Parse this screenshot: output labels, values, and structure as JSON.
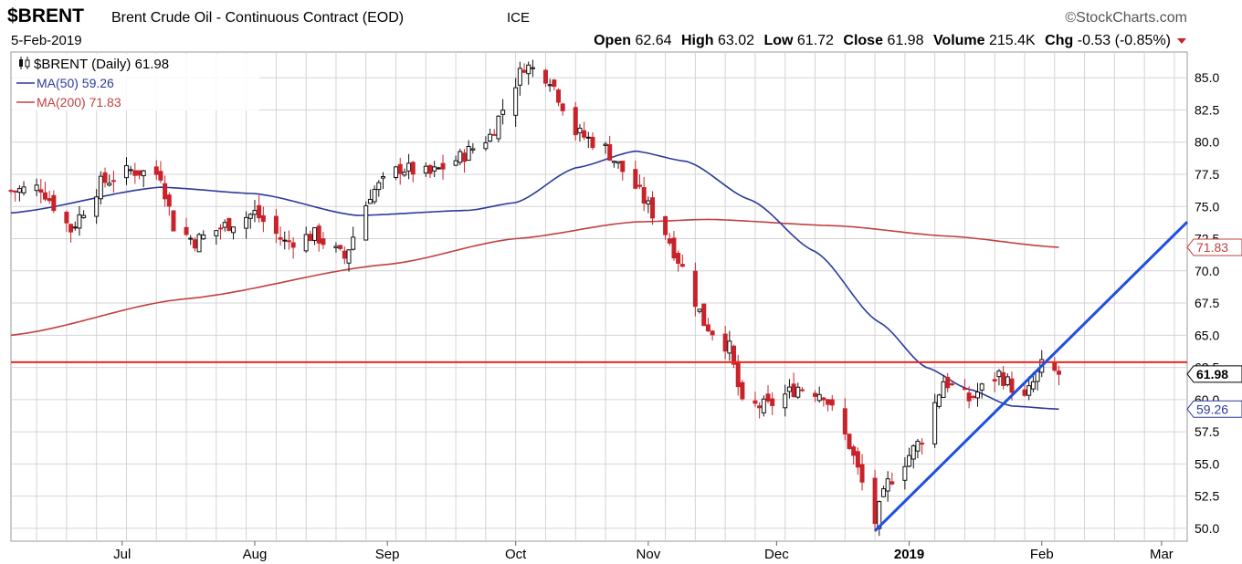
{
  "header": {
    "symbol": "$BRENT",
    "name": "Brent Crude Oil - Continuous Contract (EOD)",
    "exchange": "ICE",
    "watermark": "©StockCharts.com",
    "date": "5-Feb-2019",
    "quote": {
      "open_label": "Open",
      "open": "62.64",
      "high_label": "High",
      "high": "63.02",
      "low_label": "Low",
      "low": "61.72",
      "close_label": "Close",
      "close": "61.98",
      "volume_label": "Volume",
      "volume": "215.4K",
      "chg_label": "Chg",
      "chg": "-0.53 (-0.85%)"
    }
  },
  "legend": {
    "price": "$BRENT (Daily) 61.98",
    "ma50": "MA(50) 59.26",
    "ma200": "MA(200) 71.83"
  },
  "colors": {
    "up": "#111111",
    "down": "#c8232a",
    "ma50": "#2b3a9a",
    "ma200": "#c24040",
    "hline": "#e8281e",
    "trend": "#1f4fe0",
    "grid": "#d4d4d4"
  },
  "chart_data": {
    "type": "candlestick",
    "y_axis": {
      "min": 49,
      "max": 87,
      "ticks": [
        "85.0",
        "82.5",
        "80.0",
        "77.5",
        "75.0",
        "72.5",
        "70.0",
        "67.5",
        "65.0",
        "62.5",
        "60.0",
        "57.5",
        "55.0",
        "52.5",
        "50.0"
      ],
      "side": "right"
    },
    "x_axis": {
      "ticks": [
        {
          "label": "Jul",
          "date": "2018-07-01"
        },
        {
          "label": "Aug",
          "date": "2018-08-01"
        },
        {
          "label": "Sep",
          "date": "2018-09-01"
        },
        {
          "label": "Oct",
          "date": "2018-10-01"
        },
        {
          "label": "Nov",
          "date": "2018-11-01"
        },
        {
          "label": "Dec",
          "date": "2018-12-01"
        },
        {
          "label": "2019",
          "date": "2019-01-01"
        },
        {
          "label": "Feb",
          "date": "2019-02-01"
        },
        {
          "label": "Mar",
          "date": "2019-03-01"
        }
      ],
      "range": [
        "2018-06-05",
        "2019-03-07"
      ]
    },
    "grid": true,
    "price_anchors": [
      [
        "2018-06-05",
        76.2
      ],
      [
        "2018-06-12",
        76.5
      ],
      [
        "2018-06-19",
        73.2
      ],
      [
        "2018-06-26",
        76.8
      ],
      [
        "2018-07-03",
        77.8
      ],
      [
        "2018-07-10",
        77.5
      ],
      [
        "2018-07-13",
        73.5
      ],
      [
        "2018-07-18",
        72.3
      ],
      [
        "2018-07-25",
        73.5
      ],
      [
        "2018-08-01",
        74.5
      ],
      [
        "2018-08-08",
        72.2
      ],
      [
        "2018-08-15",
        72.8
      ],
      [
        "2018-08-22",
        71.0
      ],
      [
        "2018-08-28",
        76.0
      ],
      [
        "2018-09-04",
        78.0
      ],
      [
        "2018-09-11",
        77.5
      ],
      [
        "2018-09-18",
        78.8
      ],
      [
        "2018-09-25",
        80.5
      ],
      [
        "2018-10-03",
        86.0
      ],
      [
        "2018-10-09",
        85.0
      ],
      [
        "2018-10-15",
        80.8
      ],
      [
        "2018-10-22",
        79.5
      ],
      [
        "2018-10-29",
        76.5
      ],
      [
        "2018-11-05",
        73.0
      ],
      [
        "2018-11-09",
        70.2
      ],
      [
        "2018-11-14",
        66.0
      ],
      [
        "2018-11-20",
        64.0
      ],
      [
        "2018-11-23",
        59.5
      ],
      [
        "2018-11-29",
        59.5
      ],
      [
        "2018-12-06",
        61.0
      ],
      [
        "2018-12-12",
        60.5
      ],
      [
        "2018-12-18",
        56.5
      ],
      [
        "2018-12-24",
        50.5
      ],
      [
        "2018-12-27",
        53.5
      ],
      [
        "2019-01-04",
        57.0
      ],
      [
        "2019-01-09",
        61.5
      ],
      [
        "2019-01-15",
        60.0
      ],
      [
        "2019-01-22",
        62.0
      ],
      [
        "2019-01-28",
        60.0
      ],
      [
        "2019-02-01",
        62.6
      ],
      [
        "2019-02-05",
        61.98
      ]
    ],
    "ma50": [
      [
        "2018-06-05",
        74.5
      ],
      [
        "2018-07-10",
        76.5
      ],
      [
        "2018-08-01",
        76.0
      ],
      [
        "2018-08-25",
        74.3
      ],
      [
        "2018-09-20",
        74.7
      ],
      [
        "2018-10-01",
        75.3
      ],
      [
        "2018-10-15",
        78.0
      ],
      [
        "2018-10-29",
        79.3
      ],
      [
        "2018-11-10",
        78.5
      ],
      [
        "2018-11-25",
        75.5
      ],
      [
        "2018-12-10",
        71.5
      ],
      [
        "2018-12-25",
        66.0
      ],
      [
        "2019-01-05",
        62.5
      ],
      [
        "2019-01-15",
        60.8
      ],
      [
        "2019-01-25",
        59.5
      ],
      [
        "2019-02-05",
        59.26
      ]
    ],
    "ma200": [
      [
        "2018-06-05",
        65.0
      ],
      [
        "2018-07-15",
        67.8
      ],
      [
        "2018-09-01",
        70.5
      ],
      [
        "2018-10-01",
        72.5
      ],
      [
        "2018-10-29",
        73.8
      ],
      [
        "2018-11-15",
        74.0
      ],
      [
        "2018-12-15",
        73.5
      ],
      [
        "2019-01-10",
        72.7
      ],
      [
        "2019-02-05",
        71.83
      ]
    ],
    "horizontal_line": 62.9,
    "trendline": [
      [
        "2018-12-24",
        49.8
      ],
      [
        "2019-03-07",
        73.8
      ]
    ],
    "end_labels": {
      "price": "61.98",
      "ma50": "59.26",
      "ma200": "71.83"
    }
  }
}
